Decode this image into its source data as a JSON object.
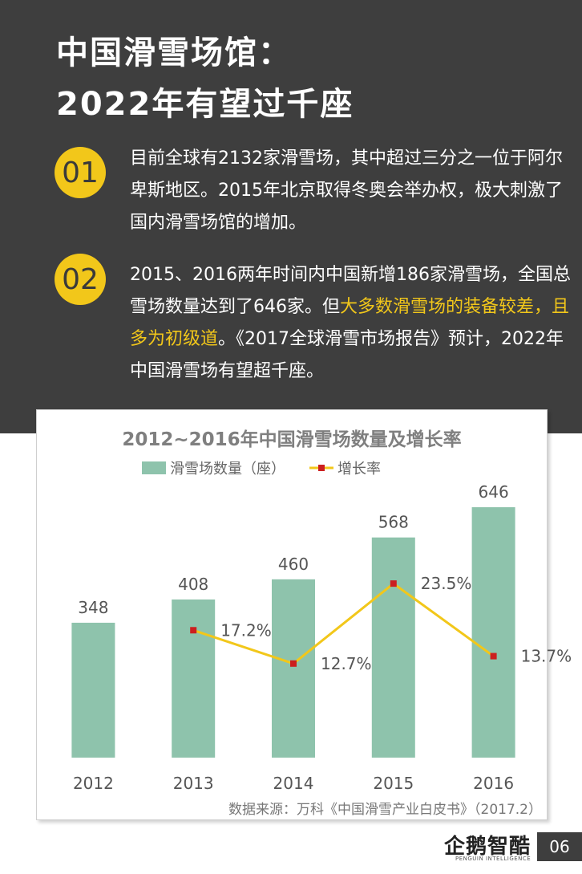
{
  "header": {
    "title_line1": "中国滑雪场馆：",
    "title_line2": "2022年有望过千座"
  },
  "points": [
    {
      "number": "01",
      "segments": [
        {
          "text": "目前全球有2132家滑雪场，其中超过三分之一位于阿尔卑斯地区。2015年北京取得冬奥会举办权，极大刺激了国内滑雪场馆的增加。",
          "highlight": false
        }
      ]
    },
    {
      "number": "02",
      "segments": [
        {
          "text": "2015、2016两年时间内中国新增186家滑雪场，全国总雪场数量达到了646家。但",
          "highlight": false
        },
        {
          "text": "大多数滑雪场的装备较差，且多为初级道",
          "highlight": true
        },
        {
          "text": "。《2017全球滑雪市场报告》预计，2022年中国滑雪场有望超千座。",
          "highlight": false
        }
      ]
    }
  ],
  "chart_data": {
    "type": "bar",
    "title": "2012~2016年中国滑雪场数量及增长率",
    "categories": [
      "2012",
      "2013",
      "2014",
      "2015",
      "2016"
    ],
    "series": [
      {
        "name": "滑雪场数量（座）",
        "type": "bar",
        "values": [
          348,
          408,
          460,
          568,
          646
        ],
        "labels": [
          "348",
          "408",
          "460",
          "568",
          "646"
        ],
        "color": "#8ec3ac"
      },
      {
        "name": "增长率",
        "type": "line",
        "values": [
          null,
          17.2,
          12.7,
          23.5,
          13.7
        ],
        "labels": [
          "",
          "17.2%",
          "12.7%",
          "23.5%",
          "13.7%"
        ],
        "line_color": "#f2c71a",
        "marker_color": "#cc1f1f"
      }
    ],
    "bar_ylim": [
      0,
      700
    ],
    "line_ylim": [
      0,
      35
    ],
    "legend_position": "top",
    "grid": false,
    "source": "数据来源：万科《中国滑雪产业白皮书》（2017.2）"
  },
  "footer": {
    "logo": "企鹅智酷",
    "logo_sub": "PENGUIN INTELLIGENCE",
    "page_number": "06"
  }
}
